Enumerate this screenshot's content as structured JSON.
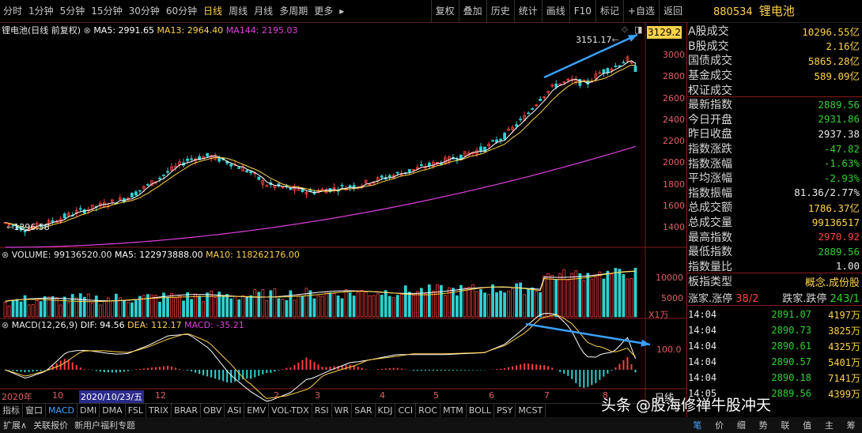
{
  "toolbar": {
    "period_tabs": [
      "分时",
      "1分钟",
      "5分钟",
      "15分钟",
      "30分钟",
      "60分钟",
      "日线",
      "周线",
      "月线",
      "多周期",
      "更多"
    ],
    "active_tab": "日线",
    "tools": [
      "复权",
      "叠加",
      "历史",
      "统计",
      "画线",
      "F10",
      "标记",
      "+自选",
      "返回"
    ]
  },
  "index": {
    "code": "880534",
    "name": "锂电池"
  },
  "main_chart": {
    "title": "锂电池(日线 前复权)",
    "ma5_label": "MA5: 2991.65",
    "ma13_label": "MA13: 2964.40",
    "ma144_label": "MA144: 2195.03",
    "high_marker": "3151.17",
    "low_marker": "1396.58",
    "current_price_label": "3129.2"
  },
  "volume_chart": {
    "volume_label": "VOLUME: 99136520.00",
    "ma5_label": "MA5: 122973888.00",
    "ma10_label": "MA10: 118262176.00",
    "unit_label": "X1万"
  },
  "macd_chart": {
    "title": "MACD(12,26,9)",
    "dif_label": "DIF: 94.56",
    "dea_label": "DEA: 112.17",
    "macd_label": "MACD: -35.21",
    "tick": "100.0"
  },
  "x_axis": {
    "labels": [
      "2020年",
      "10",
      "2020/10/23/五",
      "12",
      "2",
      "3",
      "4",
      "5",
      "6",
      "7",
      "8"
    ],
    "right_label": "日线"
  },
  "y_axis_price": [
    "3000",
    "2800",
    "2600",
    "2400",
    "2200",
    "2000",
    "1800",
    "1600",
    "1400"
  ],
  "y_axis_volume": [
    "10000",
    "5000"
  ],
  "side_panel": {
    "rows": [
      {
        "label": "A股成交",
        "value": "10296.55亿",
        "color": "#ffd24a"
      },
      {
        "label": "B股成交",
        "value": "2.16亿",
        "color": "#ffd24a"
      },
      {
        "label": "国债成交",
        "value": "5865.28亿",
        "color": "#ffd24a"
      },
      {
        "label": "基金成交",
        "value": "589.09亿",
        "color": "#ffd24a"
      },
      {
        "label": "权证成交",
        "value": "",
        "color": "#ffd24a"
      },
      {
        "label": "最新指数",
        "value": "2889.56",
        "color": "#2fd12f"
      },
      {
        "label": "今日开盘",
        "value": "2931.86",
        "color": "#2fd12f"
      },
      {
        "label": "昨日收盘",
        "value": "2937.38",
        "color": "#e8e8e8"
      },
      {
        "label": "指数涨跌",
        "value": "-47.82",
        "color": "#2fd12f"
      },
      {
        "label": "指数涨幅",
        "value": "-1.63%",
        "color": "#2fd12f"
      },
      {
        "label": "平均涨幅",
        "value": "-2.93%",
        "color": "#2fd12f"
      },
      {
        "label": "指数振幅",
        "value": "81.36/2.77%",
        "color": "#e8e8e8"
      },
      {
        "label": "总成交额",
        "value": "1786.37亿",
        "color": "#ffd24a"
      },
      {
        "label": "总成交量",
        "value": "99136517",
        "color": "#ffd24a"
      },
      {
        "label": "最高指数",
        "value": "2970.92",
        "color": "#ff4040"
      },
      {
        "label": "最低指数",
        "value": "2889.56",
        "color": "#2fd12f"
      },
      {
        "label": "指数量比",
        "value": "1.00",
        "color": "#e8e8e8"
      }
    ],
    "sector_type_label": "板指类型",
    "sector_type_value": "概念.成份股",
    "up_label": "涨家.涨停",
    "up_value": "38/2",
    "down_label": "跌家.跌停",
    "down_value": "243/1",
    "ticks": [
      {
        "time": "14:04",
        "price": "2891.07",
        "vol": "4197万"
      },
      {
        "time": "14:04",
        "price": "2890.73",
        "vol": "3825万"
      },
      {
        "time": "14:04",
        "price": "2890.61",
        "vol": "4325万"
      },
      {
        "time": "14:04",
        "price": "2890.57",
        "vol": "5401万"
      },
      {
        "time": "14:04",
        "price": "2890.18",
        "vol": "7141万"
      },
      {
        "time": "14:05",
        "price": "2889.56",
        "vol": "4399万"
      }
    ]
  },
  "bottom_tabs": [
    "指标",
    "窗口",
    "MACD",
    "DMI",
    "DMA",
    "FSL",
    "TRIX",
    "BRAR",
    "OBV",
    "ASI",
    "EMV",
    "VOL-TDX",
    "RSI",
    "WR",
    "SAR",
    "KDJ",
    "CCI",
    "ROC",
    "MTM",
    "BOLL",
    "PSY",
    "MCST"
  ],
  "active_bottom_tab": "MACD",
  "status_bar": [
    "扩展∧",
    "关联报价",
    "新用户福利专题"
  ],
  "right_bottom_tabs": [
    "笔",
    "价",
    "细",
    "势",
    "联",
    "值",
    "主",
    "筹"
  ],
  "watermark": "头条 @股海修禅牛股冲天",
  "colors": {
    "ma5": "#ffffff",
    "ma13": "#ffd24a",
    "ma144": "#e040e0",
    "up": "#ff4040",
    "down": "#2fd1d1",
    "arrow": "#3aa0ff",
    "divider": "#8b1a1a"
  }
}
